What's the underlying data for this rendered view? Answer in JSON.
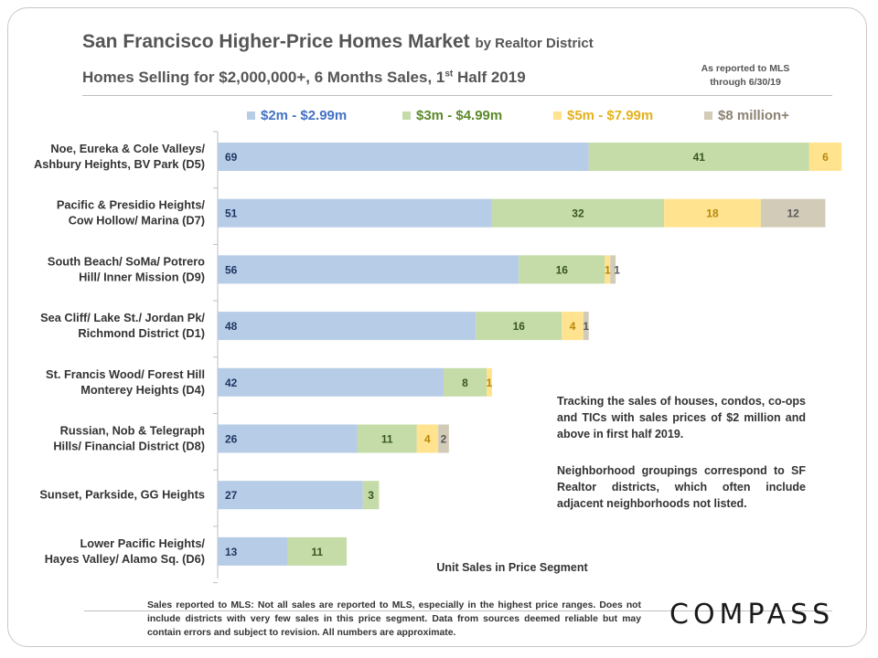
{
  "title": "San Francisco Higher-Price Homes Market",
  "title_suffix": "by Realtor District",
  "subtitle_main": "Homes Selling for $2,000,000+, 6 Months Sales, 1",
  "subtitle_sup": "st",
  "subtitle_end": "Half 2019",
  "source_note_line1": "As reported to MLS",
  "source_note_line2": "through 6/30/19",
  "notes": [
    "Tracking the sales of houses, condos, co-ops and TICs with sales prices of $2 million and above in first half 2019.",
    "Neighborhood groupings correspond to SF Realtor districts, which often include adjacent neighborhoods not listed."
  ],
  "footer": "Sales reported to MLS: Not all sales are reported to MLS, especially in the highest price ranges. Does not include districts with very few sales in this price segment. Data from sources deemed reliable but may contain errors and subject to revision. All numbers are approximate.",
  "logo_text": "COMPASS",
  "chart_data": {
    "type": "bar",
    "orientation": "horizontal",
    "stacked": true,
    "xlabel": "Unit Sales in Price Segment",
    "legend_position": "top",
    "categories": [
      [
        "Noe, Eureka & Cole Valleys/",
        "Ashbury Heights, BV Park (D5)"
      ],
      [
        "Pacific & Presidio Heights/",
        "Cow Hollow/ Marina (D7)"
      ],
      [
        "South Beach/ SoMa/ Potrero",
        "Hill/ Inner Mission  (D9)"
      ],
      [
        "Sea Cliff/ Lake St./ Jordan Pk/",
        "Richmond District (D1)"
      ],
      [
        "St. Francis Wood/ Forest Hill",
        "Monterey Heights (D4)"
      ],
      [
        "Russian, Nob & Telegraph",
        "Hills/ Financial District (D8)"
      ],
      [
        "Sunset, Parkside, GG Heights"
      ],
      [
        "Lower Pacific Heights/",
        "Hayes Valley/ Alamo Sq. (D6)"
      ]
    ],
    "series": [
      {
        "name": "$2m - $2.99m",
        "color": "#b7cce6",
        "label_color": "#1f3864",
        "values": [
          69,
          51,
          56,
          48,
          42,
          26,
          27,
          13
        ]
      },
      {
        "name": "$3m - $4.99m",
        "color": "#c5dca8",
        "label_color": "#375623",
        "values": [
          41,
          32,
          16,
          16,
          8,
          11,
          3,
          11
        ]
      },
      {
        "name": "$5m - $7.99m",
        "color": "#ffe38f",
        "label_color": "#b8860b",
        "values": [
          6,
          18,
          1,
          4,
          1,
          4,
          0,
          0
        ]
      },
      {
        "name": "$8 million+",
        "color": "#d2cbb8",
        "label_color": "#5a5a5a",
        "values": [
          0,
          12,
          1,
          1,
          0,
          2,
          0,
          0
        ]
      }
    ],
    "legend_text_colors": [
      "#4472c4",
      "#5c8a2a",
      "#e3b21f",
      "#8c8272"
    ]
  }
}
